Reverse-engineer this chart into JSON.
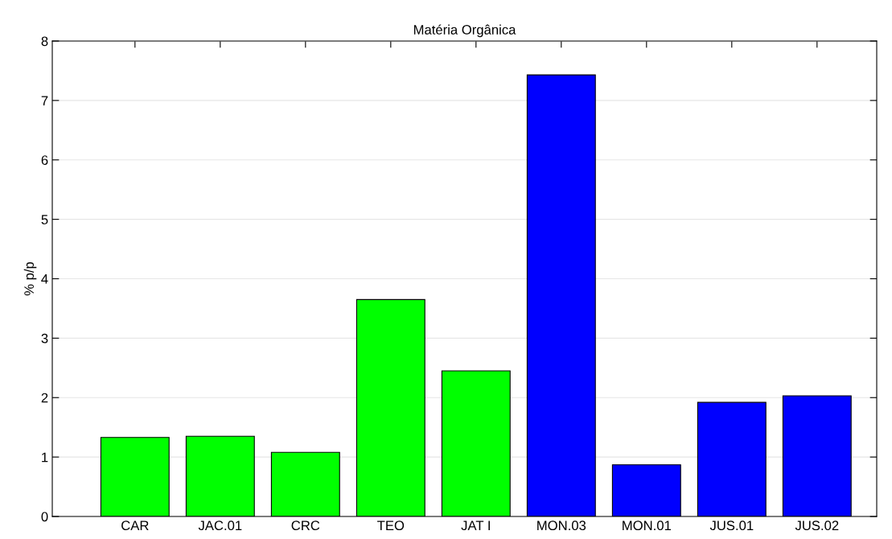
{
  "chart_data": {
    "type": "bar",
    "title": "Matéria Orgânica",
    "ylabel": "% p/p",
    "categories": [
      "CAR",
      "JAC.01",
      "CRC",
      "TEO",
      "JAT I",
      "MON.03",
      "MON.01",
      "JUS.01",
      "JUS.02"
    ],
    "values": [
      1.33,
      1.35,
      1.08,
      3.65,
      2.45,
      7.43,
      0.87,
      1.92,
      2.03
    ],
    "colors": [
      "#00ff00",
      "#00ff00",
      "#00ff00",
      "#00ff00",
      "#00ff00",
      "#0000ff",
      "#0000ff",
      "#0000ff",
      "#0000ff"
    ],
    "ylim": [
      0,
      8
    ],
    "yticks": [
      0,
      1,
      2,
      3,
      4,
      5,
      6,
      7,
      8
    ],
    "grid": "y"
  }
}
